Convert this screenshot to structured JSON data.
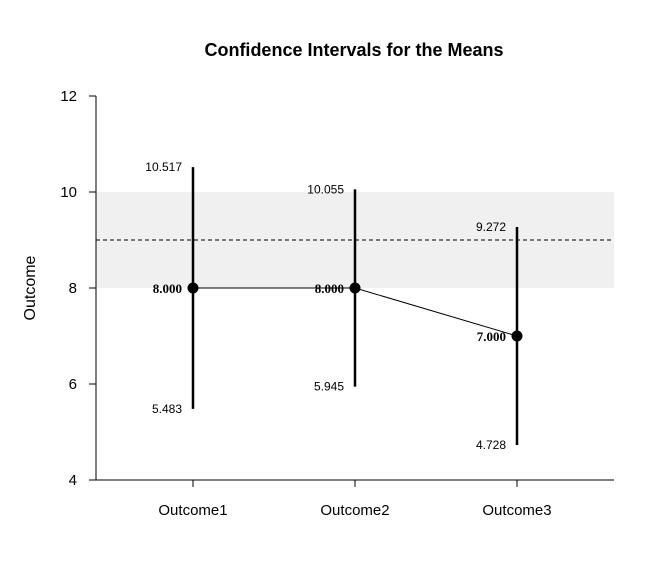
{
  "chart_data": {
    "type": "scatter",
    "title": "Confidence Intervals for the Means",
    "xlabel": "",
    "ylabel": "Outcome",
    "categories": [
      "Outcome1",
      "Outcome2",
      "Outcome3"
    ],
    "means": [
      8.0,
      8.0,
      7.0
    ],
    "mean_labels": [
      "8.000",
      "8.000",
      "7.000"
    ],
    "lower": [
      5.483,
      5.945,
      4.728
    ],
    "lower_labels": [
      "5.483",
      "5.945",
      "4.728"
    ],
    "upper": [
      10.517,
      10.055,
      9.272
    ],
    "upper_labels": [
      "10.517",
      "10.055",
      "9.272"
    ],
    "reference_band": {
      "low": 8,
      "high": 10,
      "color": "#f0f0f0"
    },
    "reference_line": 9,
    "ylim": [
      4,
      12
    ],
    "yticks": [
      4,
      6,
      8,
      10,
      12
    ],
    "ytick_labels": [
      "4",
      "6",
      "8",
      "10",
      "12"
    ],
    "grid": false,
    "colors": {
      "points": "#000000",
      "lines": "#000000"
    }
  }
}
